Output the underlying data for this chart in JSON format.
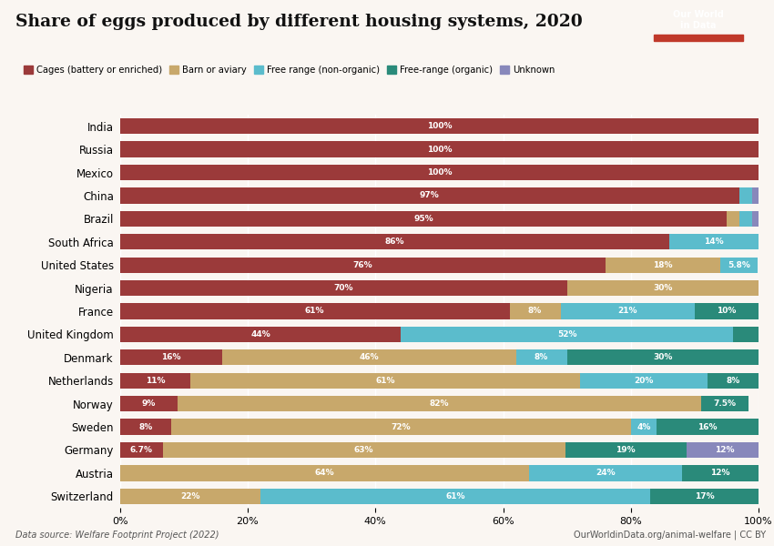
{
  "title": "Share of eggs produced by different housing systems, 2020",
  "categories": [
    "India",
    "Russia",
    "Mexico",
    "China",
    "Brazil",
    "South Africa",
    "United States",
    "Nigeria",
    "France",
    "United Kingdom",
    "Denmark",
    "Netherlands",
    "Norway",
    "Sweden",
    "Germany",
    "Austria",
    "Switzerland"
  ],
  "series": {
    "Cages (battery or enriched)": [
      100,
      100,
      100,
      97,
      95,
      86,
      76,
      70,
      61,
      44,
      16,
      11,
      9,
      8,
      6.7,
      0,
      0
    ],
    "Barn or aviary": [
      0,
      0,
      0,
      0,
      2,
      0,
      18,
      30,
      8,
      0,
      46,
      61,
      82,
      72,
      63,
      64,
      22
    ],
    "Free range (non-organic)": [
      0,
      0,
      0,
      2,
      2,
      14,
      5.8,
      0,
      21,
      52,
      8,
      20,
      0,
      4,
      0,
      24,
      61
    ],
    "Free-range (organic)": [
      0,
      0,
      0,
      0,
      0,
      0,
      0,
      0,
      10,
      4,
      30,
      8,
      7.5,
      16,
      19,
      12,
      17
    ],
    "Unknown": [
      0,
      0,
      0,
      1,
      1,
      0,
      0,
      0,
      0,
      0,
      0,
      0,
      0,
      0,
      12,
      0,
      0
    ]
  },
  "colors": {
    "Cages (battery or enriched)": "#9b3a3a",
    "Barn or aviary": "#c8a86b",
    "Free range (non-organic)": "#5bbccc",
    "Free-range (organic)": "#2a8a7a",
    "Unknown": "#8888bb"
  },
  "labels": {
    "Cages (battery or enriched)": [
      "100%",
      "100%",
      "100%",
      "97%",
      "95%",
      "86%",
      "76%",
      "70%",
      "61%",
      "44%",
      "16%",
      "11%",
      "9%",
      "8%",
      "6.7%",
      "",
      ""
    ],
    "Barn or aviary": [
      "",
      "",
      "",
      "",
      "",
      "",
      "18%",
      "30%",
      "8%",
      "",
      "46%",
      "61%",
      "82%",
      "72%",
      "63%",
      "64%",
      "22%"
    ],
    "Free range (non-organic)": [
      "",
      "",
      "",
      "",
      "",
      "14%",
      "5.8%",
      "",
      "21%",
      "52%",
      "8%",
      "20%",
      "",
      "4%",
      "",
      "24%",
      "61%"
    ],
    "Free-range (organic)": [
      "",
      "",
      "",
      "",
      "",
      "",
      "",
      "",
      "10%",
      "",
      "30%",
      "8%",
      "7.5%",
      "16%",
      "19%",
      "12%",
      "17%"
    ],
    "Unknown": [
      "",
      "",
      "",
      "",
      "",
      "",
      "",
      "",
      "",
      "",
      "",
      "",
      "",
      "",
      "12%",
      "",
      ""
    ]
  },
  "bold_countries": [
    "United Kingdom",
    "United States",
    "South Africa"
  ],
  "datasource": "Data source: Welfare Footprint Project (2022)",
  "copyright": "OurWorldinData.org/animal-welfare | CC BY",
  "background_color": "#faf6f2",
  "logo_bg": "#1a2e4a",
  "logo_red": "#c0392b"
}
